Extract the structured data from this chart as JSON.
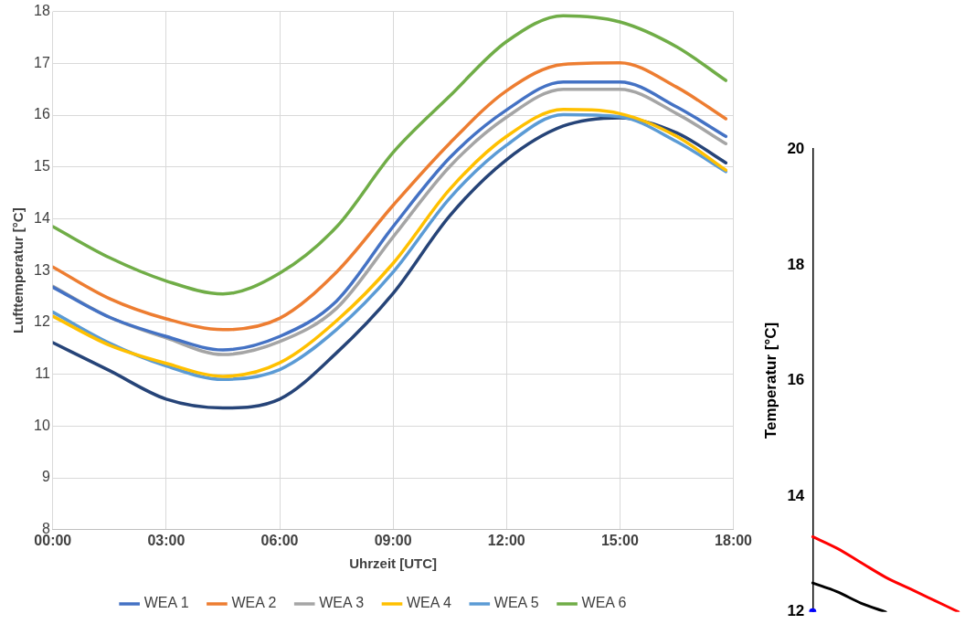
{
  "chart_data": [
    {
      "type": "line",
      "xlabel": "Uhrzeit [UTC]",
      "ylabel": "Lufttemperatur [°C]",
      "xlim": [
        0,
        18
      ],
      "xticks": [
        {
          "value": 0,
          "label": "00:00"
        },
        {
          "value": 3,
          "label": "03:00"
        },
        {
          "value": 6,
          "label": "06:00"
        },
        {
          "value": 9,
          "label": "09:00"
        },
        {
          "value": 12,
          "label": "12:00"
        },
        {
          "value": 15,
          "label": "15:00"
        },
        {
          "value": 18,
          "label": "18:00"
        }
      ],
      "ylim": [
        8,
        18
      ],
      "yticks": [
        8,
        9,
        10,
        11,
        12,
        13,
        14,
        15,
        16,
        17,
        18
      ],
      "grid": true,
      "legend": "bottom",
      "x": [
        0,
        1.5,
        3,
        4.5,
        6,
        7.5,
        9,
        10.5,
        12,
        13.5,
        15,
        16.5,
        17.8
      ],
      "series": [
        {
          "name": "WEA 1",
          "color": "#4472c4",
          "values": [
            12.68,
            12.1,
            11.73,
            11.47,
            11.73,
            12.41,
            13.85,
            15.18,
            16.1,
            16.64,
            16.64,
            16.16,
            15.59
          ]
        },
        {
          "name": "WEA 2",
          "color": "#ed7d31",
          "values": [
            13.07,
            12.46,
            12.07,
            11.86,
            12.08,
            12.97,
            14.26,
            15.46,
            16.47,
            16.98,
            17.01,
            16.54,
            15.93
          ]
        },
        {
          "name": "WEA 3",
          "color": "#a5a5a5",
          "values": [
            12.7,
            12.1,
            11.7,
            11.38,
            11.63,
            12.27,
            13.65,
            15.01,
            15.96,
            16.5,
            16.5,
            16.03,
            15.45
          ]
        },
        {
          "name": "WEA 4",
          "color": "#ffc000",
          "values": [
            12.12,
            11.56,
            11.21,
            10.96,
            11.22,
            12.03,
            13.14,
            14.57,
            15.59,
            16.11,
            16.03,
            15.59,
            14.94
          ]
        },
        {
          "name": "WEA 5",
          "color": "#5b9bd5",
          "values": [
            12.2,
            11.6,
            11.16,
            10.9,
            11.09,
            11.86,
            12.97,
            14.4,
            15.42,
            16.01,
            15.97,
            15.49,
            14.91
          ]
        },
        {
          "name": "WEA 6",
          "color": "#70ad47",
          "values": [
            13.85,
            13.25,
            12.8,
            12.55,
            12.95,
            13.84,
            15.28,
            16.37,
            17.42,
            17.92,
            17.8,
            17.32,
            16.67
          ]
        },
        {
          "color": "#264478",
          "values": [
            11.61,
            11.07,
            10.52,
            10.35,
            10.52,
            11.41,
            12.56,
            14.06,
            15.14,
            15.79,
            15.95,
            15.66,
            15.08
          ]
        }
      ]
    },
    {
      "type": "line",
      "ylabel": "Temperatur [°C]",
      "categories": [
        null,
        null,
        null,
        null,
        null,
        null,
        null
      ],
      "ylim": [
        12,
        20
      ],
      "yticks": [
        12,
        14,
        16,
        18,
        20
      ],
      "tick_labels": "y",
      "grid": false,
      "legend": false,
      "series": [
        {
          "color": "#ff0000",
          "values": [
            13.3,
            13.1,
            12.85,
            12.6,
            12.4,
            12.2,
            12.0
          ]
        },
        {
          "color": "#000000",
          "values": [
            12.5,
            12.35,
            12.15,
            12.0,
            null,
            null,
            null
          ]
        },
        {
          "color": "#0000ff",
          "marker": "circle",
          "values": [
            12.0,
            null,
            null,
            null,
            null,
            null,
            null
          ]
        }
      ]
    }
  ]
}
